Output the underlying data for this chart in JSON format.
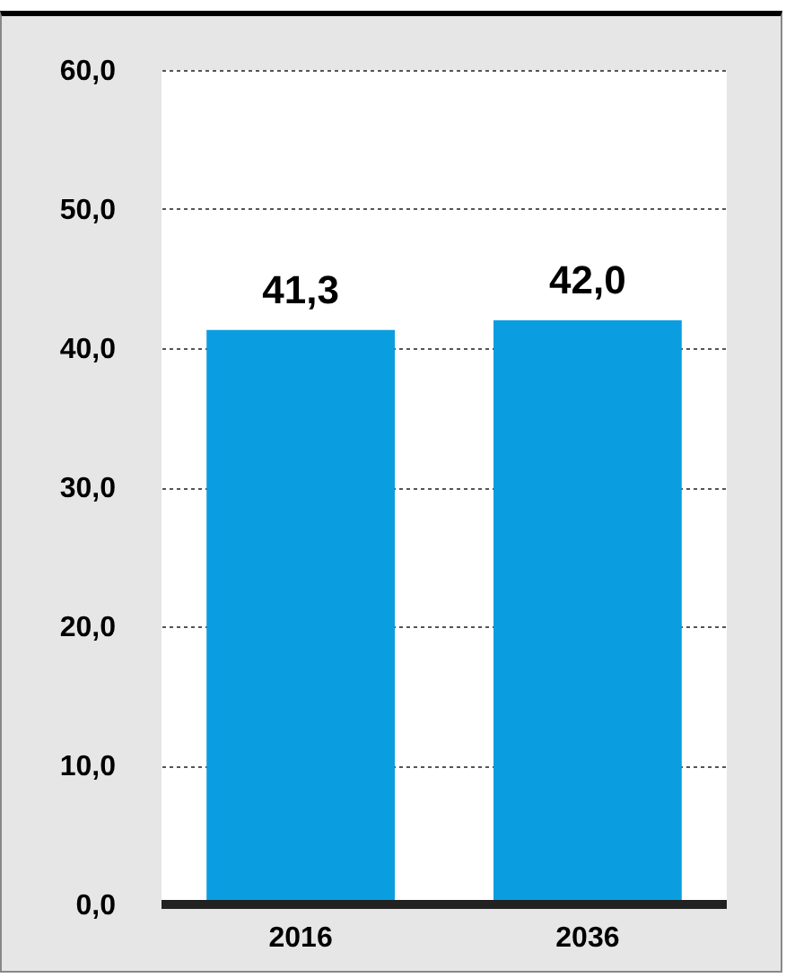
{
  "chart_data": {
    "type": "bar",
    "categories": [
      "2016",
      "2036"
    ],
    "values": [
      41.3,
      42.0
    ],
    "color": "#0a9ee0",
    "value_labels": [
      "41,3",
      "42,0"
    ],
    "ylim": [
      0,
      60
    ],
    "yticks": [
      {
        "value": 0,
        "label": "0,0"
      },
      {
        "value": 10,
        "label": "10,0"
      },
      {
        "value": 20,
        "label": "20,0"
      },
      {
        "value": 30,
        "label": "30,0"
      },
      {
        "value": 40,
        "label": "40,0"
      },
      {
        "value": 50,
        "label": "50,0"
      },
      {
        "value": 60,
        "label": "60,0"
      }
    ],
    "grid": "y"
  }
}
